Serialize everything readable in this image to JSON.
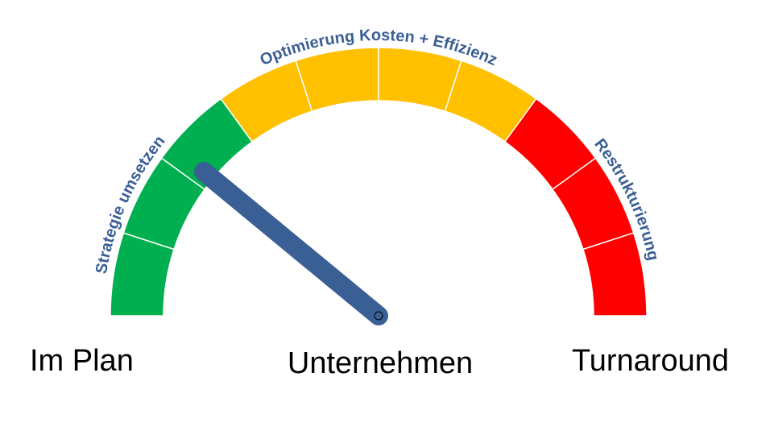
{
  "zones": [
    {
      "label": "Strategie umsetzen"
    },
    {
      "label": "Optimierung Kosten + Effizienz"
    },
    {
      "label": "Restrukturierung"
    }
  ],
  "labels": {
    "left": "Im Plan",
    "center": "Unternehmen",
    "right": "Turnaround"
  }
}
